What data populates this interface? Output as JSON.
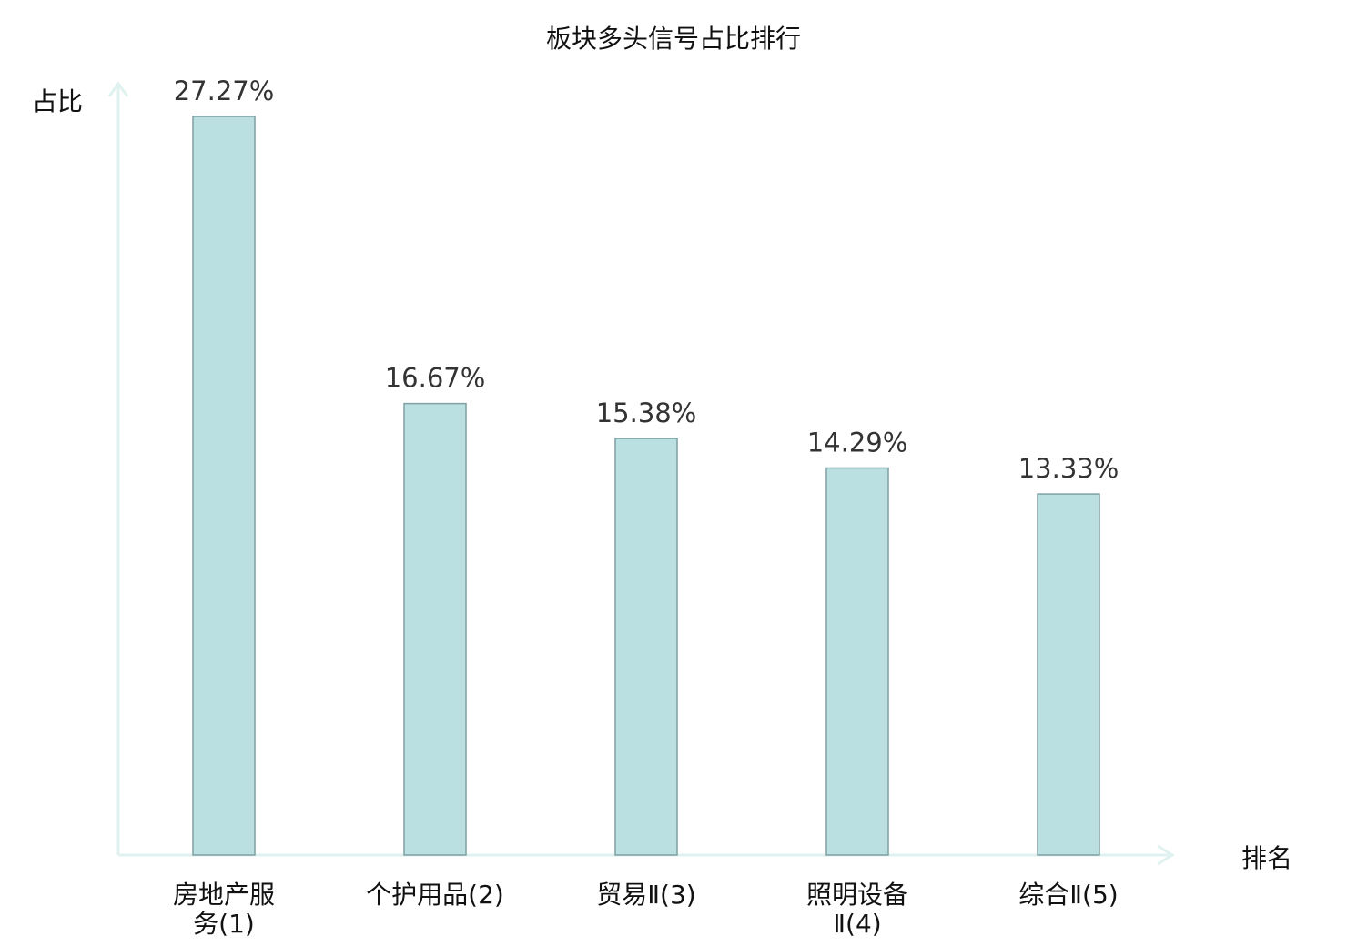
{
  "chart_data": {
    "type": "bar",
    "title": "板块多头信号占比排行",
    "xlabel": "排名",
    "ylabel": "占比",
    "ylim": [
      0,
      30
    ],
    "grid": false,
    "legend": false,
    "categories": [
      {
        "lines": [
          "房地产服",
          "务(1)"
        ],
        "highlight": false
      },
      {
        "lines": [
          "个护用品(2)"
        ],
        "highlight": false
      },
      {
        "lines": [
          "贸易Ⅱ(3)"
        ],
        "highlight": false
      },
      {
        "lines": [
          "照明设备",
          "Ⅱ(4)"
        ],
        "highlight": true
      },
      {
        "lines": [
          "综合Ⅱ(5)"
        ],
        "highlight": false
      }
    ],
    "values": [
      27.27,
      16.67,
      15.38,
      14.29,
      13.33
    ],
    "value_labels": [
      "27.27%",
      "16.67%",
      "15.38%",
      "14.29%",
      "13.33%"
    ]
  },
  "colors": {
    "bar_fill": "#bbe0e2",
    "bar_stroke": "#7fa0a3",
    "axis": "#dff2ef",
    "highlight_text": "#e00000",
    "text": "#111111"
  }
}
